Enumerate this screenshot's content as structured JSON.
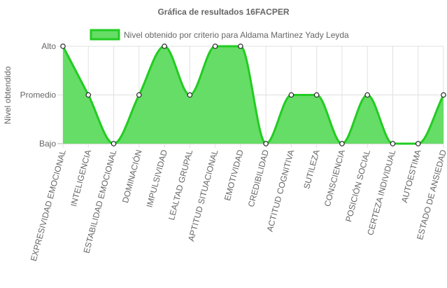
{
  "chart_data": {
    "type": "area",
    "title": "Gráfica de resultados 16FACPER",
    "ylabel": "Nivel obtendido",
    "xlabel": "",
    "y_levels": [
      "Bajo",
      "Promedio",
      "Alto"
    ],
    "ylim": [
      0,
      2
    ],
    "legend_position": "top",
    "grid": true,
    "categories": [
      "EXPRESIVIDAD EMOCIONAL",
      "INTELIGENCIA",
      "ESTABILIDAD EMOCIONAL",
      "DOMINACIÓN",
      "IMPULSIVIDAD",
      "LEALTAD GRUPAL",
      "APTITUD SITUACIONAL",
      "EMOTIVIDAD",
      "CREDIBILIDAD",
      "ACTITUD COGNITIVA",
      "SUTILEZA",
      "CONSCIENCIA",
      "POSICIÓN SOCIAL",
      "CERTEZA INDIVIDUAL",
      "AUTOESTIMA",
      "ESTADO DE ANSIEDAD"
    ],
    "series": [
      {
        "name": "Nivel obtenido por criterio para Aldama Martinez Yady Leyda",
        "values": [
          2,
          1,
          0,
          1,
          2,
          1,
          2,
          2,
          0,
          1,
          1,
          0,
          1,
          0,
          0,
          1
        ],
        "line_color": "#22cc22",
        "fill_color": "#66dd66"
      }
    ]
  }
}
